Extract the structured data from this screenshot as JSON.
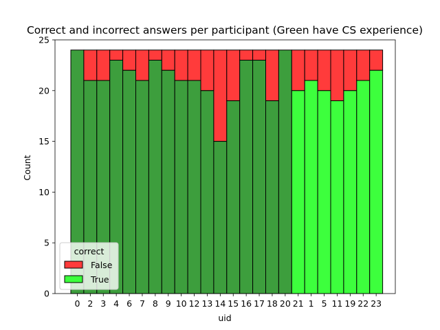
{
  "chart_data": {
    "type": "bar",
    "stacked": true,
    "title": "Correct and incorrect answers per participant (Green have CS experience)",
    "xlabel": "uid",
    "ylabel": "Count",
    "ylim": [
      0,
      25
    ],
    "yticks": [
      0,
      5,
      10,
      15,
      20,
      25
    ],
    "grid": false,
    "categories": [
      "0",
      "2",
      "3",
      "4",
      "6",
      "7",
      "8",
      "9",
      "10",
      "12",
      "13",
      "14",
      "15",
      "16",
      "17",
      "18",
      "20",
      "21",
      "1",
      "5",
      "11",
      "19",
      "22",
      "23"
    ],
    "has_cs_experience": [
      true,
      true,
      true,
      true,
      true,
      true,
      true,
      true,
      true,
      true,
      true,
      true,
      true,
      true,
      true,
      true,
      true,
      false,
      false,
      false,
      false,
      false,
      false,
      false
    ],
    "total": 24,
    "series": [
      {
        "name": "True",
        "values": [
          24,
          21,
          21,
          23,
          22,
          21,
          23,
          22,
          21,
          21,
          20,
          15,
          19,
          23,
          23,
          19,
          24,
          20,
          21,
          20,
          19,
          20,
          21,
          22
        ]
      },
      {
        "name": "False",
        "values": [
          0,
          3,
          3,
          1,
          2,
          3,
          1,
          2,
          3,
          3,
          4,
          9,
          5,
          1,
          1,
          5,
          0,
          4,
          3,
          4,
          5,
          4,
          3,
          2
        ]
      }
    ],
    "colors": {
      "false": "#ff3b3b",
      "true_cs": "#3d9e3d",
      "true_no_cs": "#3dff3d",
      "edge": "#000000"
    },
    "legend": {
      "title": "correct",
      "placement": "lower-left",
      "entries": [
        {
          "label": "False",
          "color": "#ff3b3b"
        },
        {
          "label": "True",
          "color": "#3dff3d"
        }
      ]
    }
  }
}
